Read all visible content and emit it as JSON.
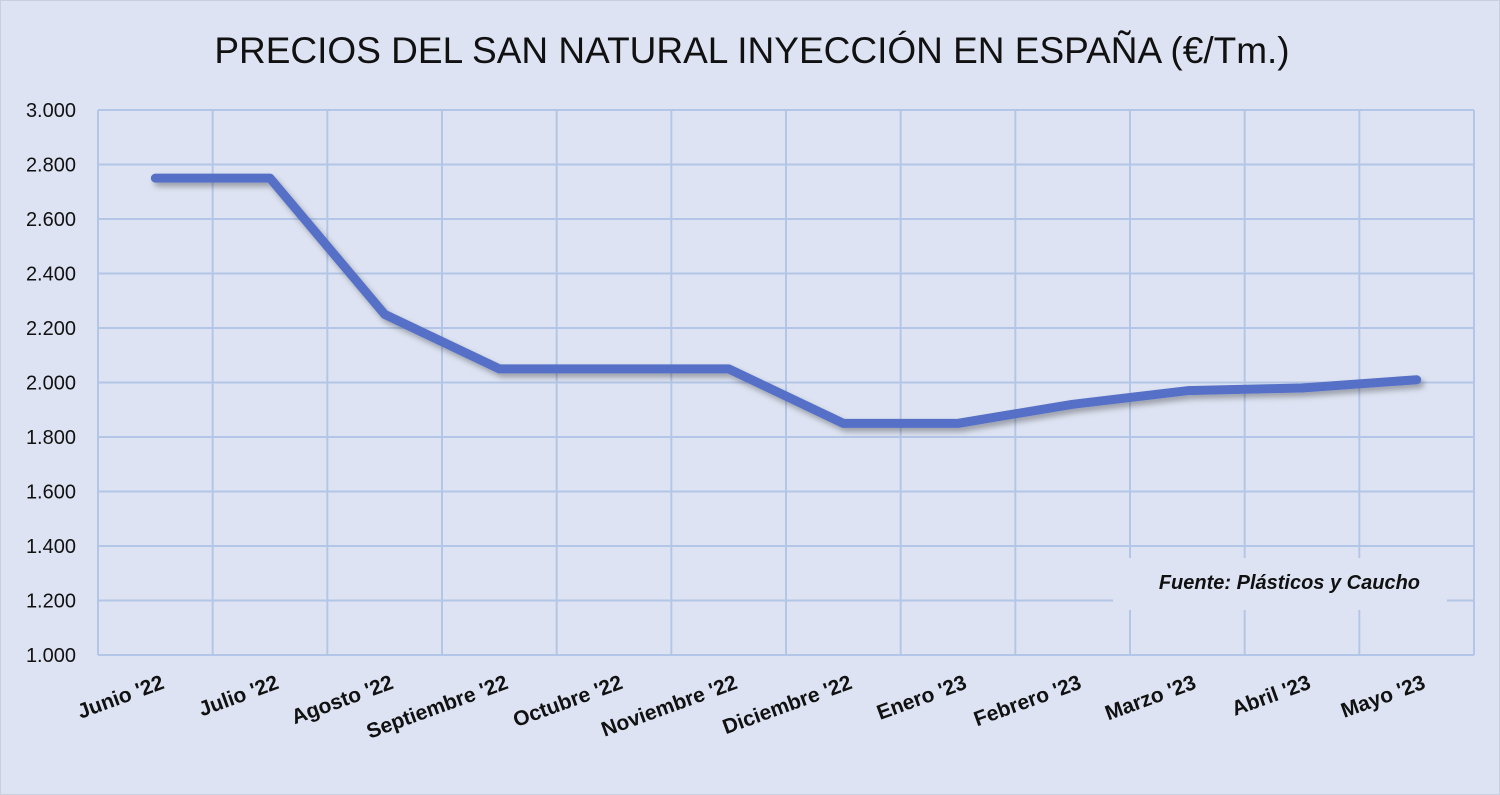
{
  "chart_data": {
    "type": "line",
    "title": "PRECIOS DEL SAN NATURAL INYECCIÓN EN ESPAÑA (€/Tm.)",
    "xlabel": "",
    "ylabel": "",
    "categories": [
      "Junio '22",
      "Julio '22",
      "Agosto '22",
      "Septiembre '22",
      "Octubre '22",
      "Noviembre '22",
      "Diciembre '22",
      "Enero '23",
      "Febrero '23",
      "Marzo '23",
      "Abril '23",
      "Mayo '23"
    ],
    "series": [
      {
        "name": "SAN natural inyección",
        "values": [
          2750,
          2750,
          2250,
          2050,
          2050,
          2050,
          1850,
          1850,
          1920,
          1970,
          1980,
          2010
        ]
      }
    ],
    "ylim": [
      1000,
      3000
    ],
    "yticks": [
      1000,
      1200,
      1400,
      1600,
      1800,
      2000,
      2200,
      2400,
      2600,
      2800,
      3000
    ],
    "ytick_labels": [
      "1.000",
      "1.200",
      "1.400",
      "1.600",
      "1.800",
      "2.000",
      "2.200",
      "2.400",
      "2.600",
      "2.800",
      "3.000"
    ],
    "grid": true,
    "legend": "none",
    "annotation": "Fuente: Plásticos y Caucho",
    "colors": {
      "line": "#5470c6",
      "grid": "#b4c6e7",
      "background": "#dde3f2"
    }
  }
}
